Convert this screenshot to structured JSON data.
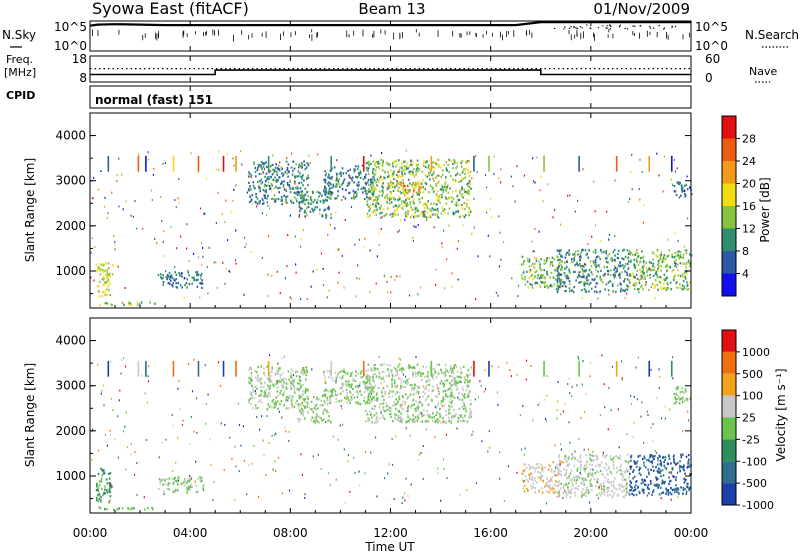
{
  "header": {
    "title_left": "Syowa East (fitACF)",
    "title_center": "Beam 13",
    "title_right": "01/Nov/2009"
  },
  "strip_panels": {
    "nsky_label": "N.Sky",
    "nsky_tick_top": "10^5",
    "nsky_tick_bottom": "10^0",
    "nsearch_label": "N.Search",
    "freq_label_1": "Freq.",
    "freq_label_2": "[MHz]",
    "freq_tick_top": "18",
    "freq_tick_bottom": "8",
    "nave_label": "Nave",
    "nave_tick_top": "60",
    "nave_tick_bottom": "0",
    "cpid_label": "CPID",
    "cpid_value": "normal (fast) 151"
  },
  "axes": {
    "xlabel": "Time UT",
    "xticks": [
      "00:00",
      "04:00",
      "08:00",
      "12:00",
      "16:00",
      "20:00",
      "00:00"
    ],
    "ylabel": "Slant Range [km]",
    "yticks": [
      "1000",
      "2000",
      "3000",
      "4000"
    ]
  },
  "colorbars": {
    "power": {
      "label": "Power [dB]",
      "ticks": [
        "4",
        "8",
        "12",
        "16",
        "20",
        "24",
        "28"
      ],
      "colors": [
        "#1010ee",
        "#2a5aa8",
        "#2e8e6e",
        "#86c43e",
        "#f2dc14",
        "#f49a1a",
        "#ee5a10",
        "#e01010"
      ]
    },
    "velocity": {
      "label": "Velocity [m s⁻¹]",
      "ticks": [
        "1000",
        "500",
        "100",
        "25",
        "-25",
        "-100",
        "-500",
        "-1000"
      ],
      "colors": [
        "#1a3fa8",
        "#2e6e8e",
        "#2e8e5a",
        "#68c44a",
        "#c8c8c8",
        "#f4a21a",
        "#ee6e10",
        "#e01010"
      ]
    }
  },
  "chart_data": [
    {
      "type": "line",
      "name": "N.Sky",
      "x_unit": "hours UT",
      "x": [
        0,
        0.3,
        1,
        2,
        3,
        4,
        5,
        6,
        7,
        8,
        9,
        10,
        11,
        12,
        13,
        14,
        15,
        16,
        17,
        18,
        19,
        20,
        21,
        22,
        23,
        24
      ],
      "y": [
        30000,
        50000,
        60000,
        50000,
        40000,
        40000,
        40000,
        40000,
        40000,
        40000,
        40000,
        40000,
        40000,
        40000,
        40000,
        40000,
        40000,
        40000,
        40000,
        150000,
        150000,
        150000,
        150000,
        150000,
        150000,
        150000
      ],
      "yscale": "log",
      "ylim": [
        1,
        100000
      ]
    },
    {
      "type": "line",
      "name": "Freq.",
      "x": [
        0,
        5,
        5,
        18,
        18,
        24
      ],
      "y": [
        10.5,
        10.5,
        12.5,
        12.5,
        10.5,
        10.5
      ],
      "ylim": [
        8,
        18
      ]
    },
    {
      "type": "line",
      "name": "Nave",
      "x": [
        0,
        24
      ],
      "y": [
        31,
        31
      ],
      "ylim": [
        0,
        60
      ]
    },
    {
      "type": "heatmap",
      "title": "Power [dB]",
      "xlabel": "Time UT",
      "ylabel": "Slant Range [km]",
      "xlim": [
        0,
        24
      ],
      "ylim": [
        180,
        4500
      ],
      "clim": [
        0,
        30
      ],
      "regions": [
        {
          "t0": 6.3,
          "t1": 8.7,
          "r0": 2500,
          "r1": 3450,
          "value": 8
        },
        {
          "t0": 8.3,
          "t1": 9.6,
          "r0": 2200,
          "r1": 2800,
          "value": 9
        },
        {
          "t0": 9.3,
          "t1": 11.3,
          "r0": 2600,
          "r1": 3350,
          "value": 8
        },
        {
          "t0": 11.0,
          "t1": 15.2,
          "r0": 2200,
          "r1": 3500,
          "value": 13
        },
        {
          "t0": 12.3,
          "t1": 13.3,
          "r0": 2700,
          "r1": 3000,
          "value": 20
        },
        {
          "t0": 0.2,
          "t1": 0.9,
          "r0": 450,
          "r1": 1200,
          "value": 15
        },
        {
          "t0": 0.3,
          "t1": 2.6,
          "r0": 260,
          "r1": 330,
          "value": 12
        },
        {
          "t0": 2.7,
          "t1": 4.5,
          "r0": 650,
          "r1": 1000,
          "value": 7
        },
        {
          "t0": 17.2,
          "t1": 18.8,
          "r0": 650,
          "r1": 1350,
          "value": 12
        },
        {
          "t0": 18.6,
          "t1": 21.5,
          "r0": 550,
          "r1": 1500,
          "value": 9
        },
        {
          "t0": 21.5,
          "t1": 24.0,
          "r0": 600,
          "r1": 1500,
          "value": 12
        },
        {
          "t0": 23.3,
          "t1": 24.0,
          "r0": 2600,
          "r1": 3000,
          "value": 7
        }
      ]
    },
    {
      "type": "heatmap",
      "title": "Velocity [m s⁻¹]",
      "xlabel": "Time UT",
      "ylabel": "Slant Range [km]",
      "xlim": [
        0,
        24
      ],
      "ylim": [
        180,
        4500
      ],
      "clim": [
        -1000,
        1000
      ],
      "regions": [
        {
          "t0": 6.3,
          "t1": 8.7,
          "r0": 2500,
          "r1": 3450,
          "value": 0
        },
        {
          "t0": 8.3,
          "t1": 9.6,
          "r0": 2200,
          "r1": 2800,
          "value": 0
        },
        {
          "t0": 9.3,
          "t1": 11.3,
          "r0": 2600,
          "r1": 3350,
          "value": 0
        },
        {
          "t0": 11.0,
          "t1": 15.2,
          "r0": 2200,
          "r1": 3500,
          "value": 0
        },
        {
          "t0": 0.2,
          "t1": 0.9,
          "r0": 450,
          "r1": 1200,
          "value": -300
        },
        {
          "t0": 0.3,
          "t1": 2.6,
          "r0": 260,
          "r1": 330,
          "value": -200
        },
        {
          "t0": 2.7,
          "t1": 4.5,
          "r0": 650,
          "r1": 1000,
          "value": 0
        },
        {
          "t0": 17.2,
          "t1": 18.8,
          "r0": 650,
          "r1": 1350,
          "value": 200
        },
        {
          "t0": 18.6,
          "t1": 21.5,
          "r0": 550,
          "r1": 1500,
          "value": 100
        },
        {
          "t0": 21.5,
          "t1": 24.0,
          "r0": 600,
          "r1": 1500,
          "value": -700
        },
        {
          "t0": 23.3,
          "t1": 24.0,
          "r0": 2600,
          "r1": 3000,
          "value": 0
        }
      ]
    }
  ]
}
